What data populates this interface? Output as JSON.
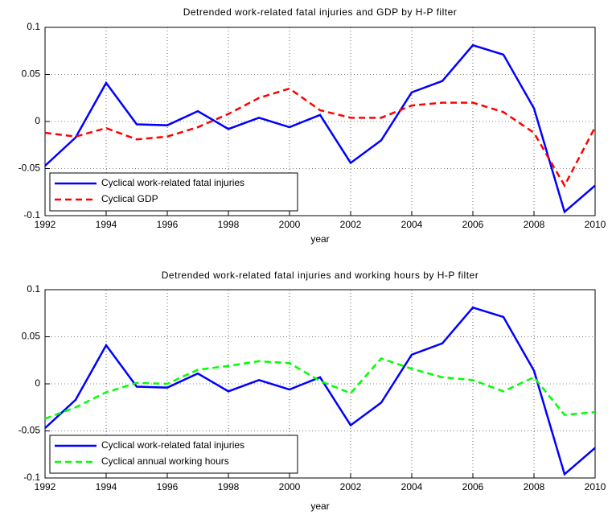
{
  "chart_data": [
    {
      "type": "line",
      "title": "Detrended work-related fatal injuries and GDP by H-P filter",
      "xlabel": "year",
      "x": [
        1992,
        1993,
        1994,
        1995,
        1996,
        1997,
        1998,
        1999,
        2000,
        2001,
        2002,
        2003,
        2004,
        2005,
        2006,
        2007,
        2008,
        2009,
        2010
      ],
      "series": [
        {
          "name": "Cyclical work-related fatal injuries",
          "color": "#0000ff",
          "linestyle": "solid",
          "values": [
            -0.047,
            -0.017,
            0.041,
            -0.003,
            -0.004,
            0.011,
            -0.008,
            0.004,
            -0.006,
            0.007,
            -0.044,
            -0.02,
            0.031,
            0.043,
            0.081,
            0.071,
            0.014,
            -0.096,
            -0.068
          ]
        },
        {
          "name": "Cyclical GDP",
          "color": "#ff0000",
          "linestyle": "dashed",
          "values": [
            -0.012,
            -0.016,
            -0.007,
            -0.019,
            -0.016,
            -0.006,
            0.008,
            0.025,
            0.035,
            0.012,
            0.004,
            0.004,
            0.017,
            0.02,
            0.02,
            0.01,
            -0.012,
            -0.068,
            -0.006
          ]
        }
      ],
      "xlim": [
        1992,
        2010
      ],
      "ylim": [
        -0.1,
        0.1
      ],
      "xticks": [
        1992,
        1994,
        1996,
        1998,
        2000,
        2002,
        2004,
        2006,
        2008,
        2010
      ],
      "yticks": [
        0.1,
        0.05,
        0,
        -0.05,
        -0.1
      ],
      "grid": true,
      "legend_loc": "lower left"
    },
    {
      "type": "line",
      "title": "Detrended work-related fatal injuries and working hours by H-P filter",
      "xlabel": "year",
      "x": [
        1992,
        1993,
        1994,
        1995,
        1996,
        1997,
        1998,
        1999,
        2000,
        2001,
        2002,
        2003,
        2004,
        2005,
        2006,
        2007,
        2008,
        2009,
        2010
      ],
      "series": [
        {
          "name": "Cyclical work-related fatal injuries",
          "color": "#0000ff",
          "linestyle": "solid",
          "values": [
            -0.047,
            -0.017,
            0.041,
            -0.003,
            -0.004,
            0.011,
            -0.008,
            0.004,
            -0.006,
            0.007,
            -0.044,
            -0.02,
            0.031,
            0.043,
            0.081,
            0.071,
            0.014,
            -0.096,
            -0.068
          ]
        },
        {
          "name": "Cyclical annual working hours",
          "color": "#00ff00",
          "linestyle": "dashed",
          "values": [
            -0.037,
            -0.025,
            -0.009,
            0.001,
            0.0,
            0.015,
            0.019,
            0.024,
            0.022,
            0.003,
            -0.01,
            0.027,
            0.016,
            0.007,
            0.004,
            -0.008,
            0.007,
            -0.033,
            -0.03
          ]
        }
      ],
      "xlim": [
        1992,
        2010
      ],
      "ylim": [
        -0.1,
        0.1
      ],
      "xticks": [
        1992,
        1994,
        1996,
        1998,
        2000,
        2002,
        2004,
        2006,
        2008,
        2010
      ],
      "yticks": [
        0.1,
        0.05,
        0,
        -0.05,
        -0.1
      ],
      "grid": true,
      "legend_loc": "lower left"
    }
  ]
}
